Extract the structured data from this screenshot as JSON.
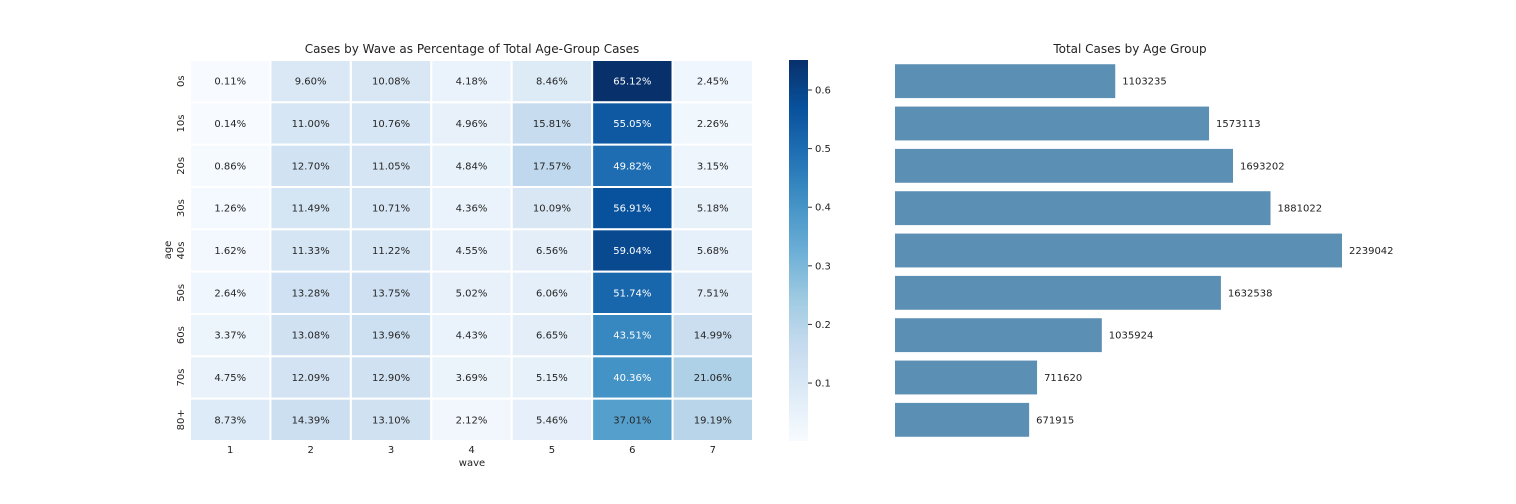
{
  "chart_data": [
    {
      "type": "heatmap",
      "title": "Cases by Wave as Percentage of Total Age-Group Cases",
      "xlabel": "wave",
      "ylabel": "age",
      "x_categories": [
        "1",
        "2",
        "3",
        "4",
        "5",
        "6",
        "7"
      ],
      "y_categories": [
        "0s",
        "10s",
        "20s",
        "30s",
        "40s",
        "50s",
        "60s",
        "70s",
        "80+"
      ],
      "values": [
        [
          0.0011,
          0.096,
          0.1008,
          0.0418,
          0.0846,
          0.6512,
          0.0245
        ],
        [
          0.0014,
          0.11,
          0.1076,
          0.0496,
          0.1581,
          0.5505,
          0.0226
        ],
        [
          0.0086,
          0.127,
          0.1105,
          0.0484,
          0.1757,
          0.4982,
          0.0315
        ],
        [
          0.0126,
          0.1149,
          0.1071,
          0.0436,
          0.1009,
          0.5691,
          0.0518
        ],
        [
          0.0162,
          0.1133,
          0.1122,
          0.0455,
          0.0656,
          0.5904,
          0.0568
        ],
        [
          0.0264,
          0.1328,
          0.1375,
          0.0502,
          0.0606,
          0.5174,
          0.0751
        ],
        [
          0.0337,
          0.1308,
          0.1396,
          0.0443,
          0.0665,
          0.4351,
          0.1499
        ],
        [
          0.0475,
          0.1209,
          0.129,
          0.0369,
          0.0515,
          0.4036,
          0.2106
        ],
        [
          0.0873,
          0.1439,
          0.131,
          0.0212,
          0.0546,
          0.3701,
          0.1919
        ]
      ],
      "annotations": [
        [
          "0.11%",
          "9.60%",
          "10.08%",
          "4.18%",
          "8.46%",
          "65.12%",
          "2.45%"
        ],
        [
          "0.14%",
          "11.00%",
          "10.76%",
          "4.96%",
          "15.81%",
          "55.05%",
          "2.26%"
        ],
        [
          "0.86%",
          "12.70%",
          "11.05%",
          "4.84%",
          "17.57%",
          "49.82%",
          "3.15%"
        ],
        [
          "1.26%",
          "11.49%",
          "10.71%",
          "4.36%",
          "10.09%",
          "56.91%",
          "5.18%"
        ],
        [
          "1.62%",
          "11.33%",
          "11.22%",
          "4.55%",
          "6.56%",
          "59.04%",
          "5.68%"
        ],
        [
          "2.64%",
          "13.28%",
          "13.75%",
          "5.02%",
          "6.06%",
          "51.74%",
          "7.51%"
        ],
        [
          "3.37%",
          "13.08%",
          "13.96%",
          "4.43%",
          "6.65%",
          "43.51%",
          "14.99%"
        ],
        [
          "4.75%",
          "12.09%",
          "12.90%",
          "3.69%",
          "5.15%",
          "40.36%",
          "21.06%"
        ],
        [
          "8.73%",
          "14.39%",
          "13.10%",
          "2.12%",
          "5.46%",
          "37.01%",
          "19.19%"
        ]
      ],
      "colormap": "Blues",
      "colorbar": {
        "range": [
          0.0011,
          0.6512
        ],
        "ticks": [
          0.1,
          0.2,
          0.3,
          0.4,
          0.5,
          0.6
        ],
        "tick_labels": [
          "0.1",
          "0.2",
          "0.3",
          "0.4",
          "0.5",
          "0.6"
        ]
      }
    },
    {
      "type": "bar",
      "orientation": "horizontal",
      "title": "Total Cases by Age Group",
      "categories": [
        "0s",
        "10s",
        "20s",
        "30s",
        "40s",
        "50s",
        "60s",
        "70s",
        "80+"
      ],
      "values": [
        1103235,
        1573113,
        1693202,
        1881022,
        2239042,
        1632538,
        1035924,
        711620,
        671915
      ],
      "value_labels": [
        "1103235",
        "1573113",
        "1693202",
        "1881022",
        "2239042",
        "1632538",
        "1035924",
        "711620",
        "671915"
      ],
      "color": "#5b8fb4",
      "axes_visible": false,
      "xlim": [
        0,
        2500000
      ]
    }
  ]
}
